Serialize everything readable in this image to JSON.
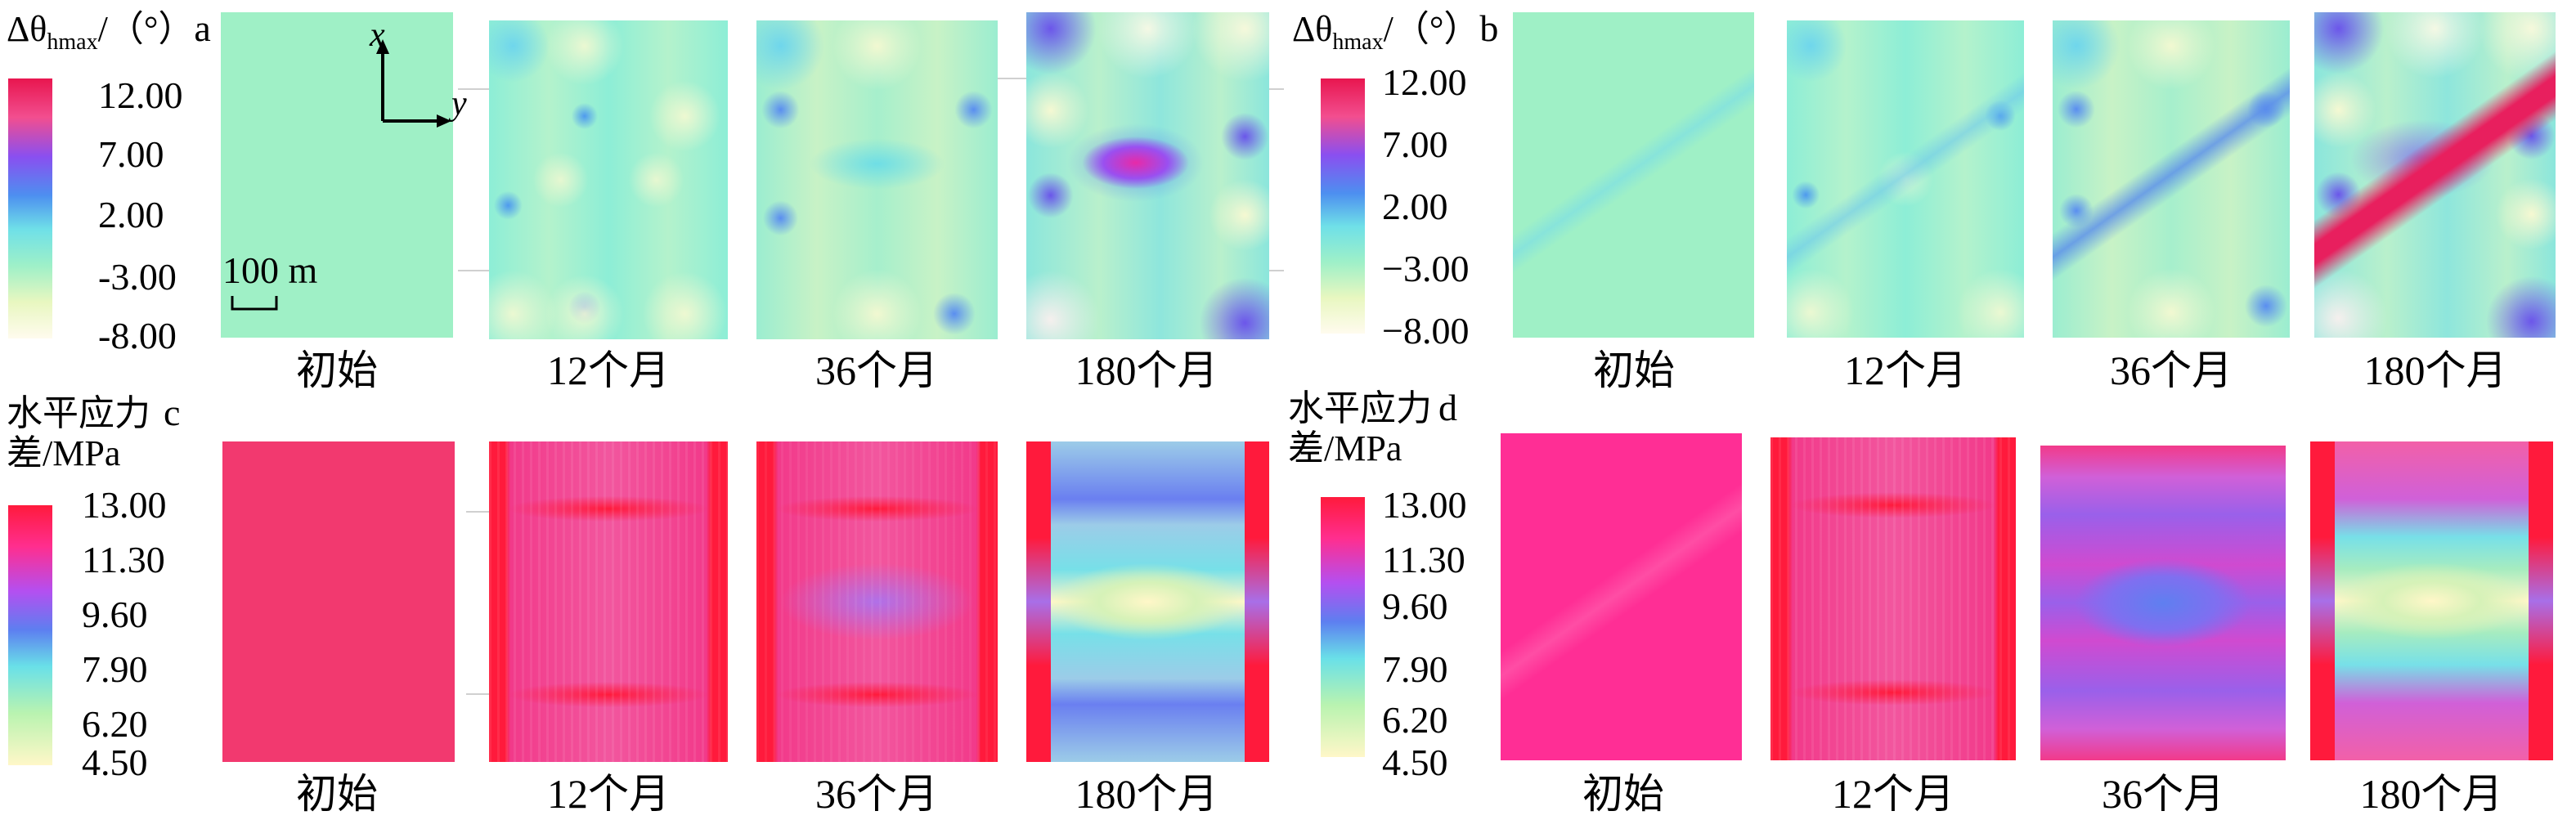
{
  "panels": {
    "a": {
      "letter": "a",
      "title_symbol": "Δθ",
      "title_sub": "hmax",
      "title_unit": "/（°）",
      "ticks": [
        "12.00",
        "7.00",
        "2.00",
        "-3.00",
        "-8.00"
      ]
    },
    "b": {
      "letter": "b",
      "title_symbol": "Δθ",
      "title_sub": "hmax",
      "title_unit": "/（°）",
      "ticks": [
        "12.00",
        "7.00",
        "2.00",
        "−3.00",
        "−8.00"
      ]
    },
    "c": {
      "letter": "c",
      "title_line1": "水平应力",
      "title_line2": "差/MPa",
      "ticks": [
        "13.00",
        "11.30",
        "9.60",
        "7.90",
        "6.20",
        "4.50"
      ]
    },
    "d": {
      "letter": "d",
      "title_line1": "水平应力",
      "title_line2": "差/MPa",
      "ticks": [
        "13.00",
        "11.30",
        "9.60",
        "7.90",
        "6.20",
        "4.50"
      ]
    }
  },
  "time_labels": [
    "初始",
    "12个月",
    "36个月",
    "180个月"
  ],
  "scale_bar": "100 m",
  "axes": {
    "x": "x",
    "y": "y"
  },
  "colors": {
    "angle_scale": [
      "#e8164f",
      "#f24e8f",
      "#7a4ff0",
      "#4d8ff0",
      "#6fe0e8",
      "#9ef0c8",
      "#f3f7c8",
      "#fffbee"
    ],
    "stress_scale": [
      "#ff1a3c",
      "#ff2e8f",
      "#b44ff0",
      "#5d7ff0",
      "#69e0e8",
      "#b9f3b0",
      "#fff7c8"
    ],
    "angle_background": "#9ff0c6",
    "stress_background": "#f2396f"
  }
}
